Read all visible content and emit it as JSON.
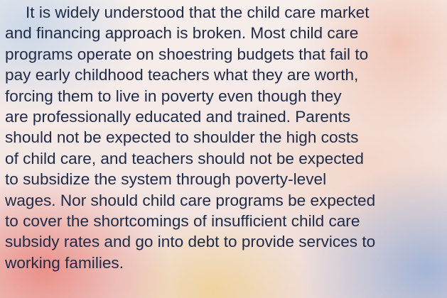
{
  "paragraph": {
    "lines": [
      "It is widely understood that the child care market",
      "and financing approach is broken. Most child care",
      "programs operate on shoestring budgets that fail to",
      "pay early childhood teachers what they are worth,",
      "forcing them to live in poverty even though they",
      "are professionally educated and trained. Parents",
      "should not be expected to shoulder the high costs",
      "of child care, and teachers should not be expected",
      "to subsidize the system through poverty-level",
      "wages. Nor should child care programs be expected",
      "to cover the shortcomings of insufficient child care",
      "subsidy rates and go into debt to provide services to",
      "working families."
    ]
  }
}
